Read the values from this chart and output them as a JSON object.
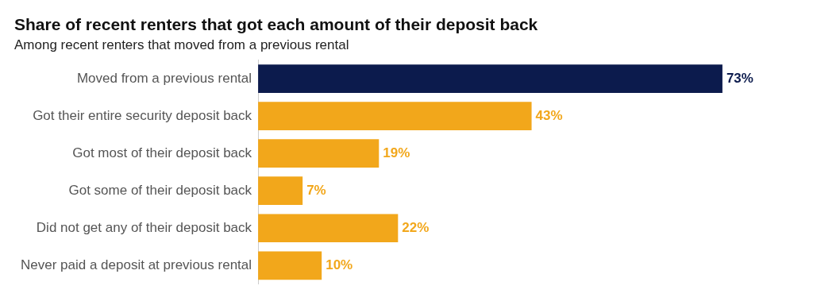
{
  "chart_data": {
    "type": "bar",
    "orientation": "horizontal",
    "title": "Share of recent renters that got each amount of their deposit back",
    "subtitle": "Among recent renters that moved from a previous rental",
    "categories": [
      "Moved from a previous rental",
      "Got their entire security deposit back",
      "Got most of their deposit back",
      "Got some of their deposit back",
      "Did not get any of their deposit back",
      "Never paid a deposit at previous rental"
    ],
    "values": [
      73,
      43,
      19,
      7,
      22,
      10
    ],
    "colors": [
      "#0c1b4d",
      "#f2a71b",
      "#f2a71b",
      "#f2a71b",
      "#f2a71b",
      "#f2a71b"
    ],
    "value_labels": [
      "73%",
      "43%",
      "19%",
      "7%",
      "22%",
      "10%"
    ]
  }
}
